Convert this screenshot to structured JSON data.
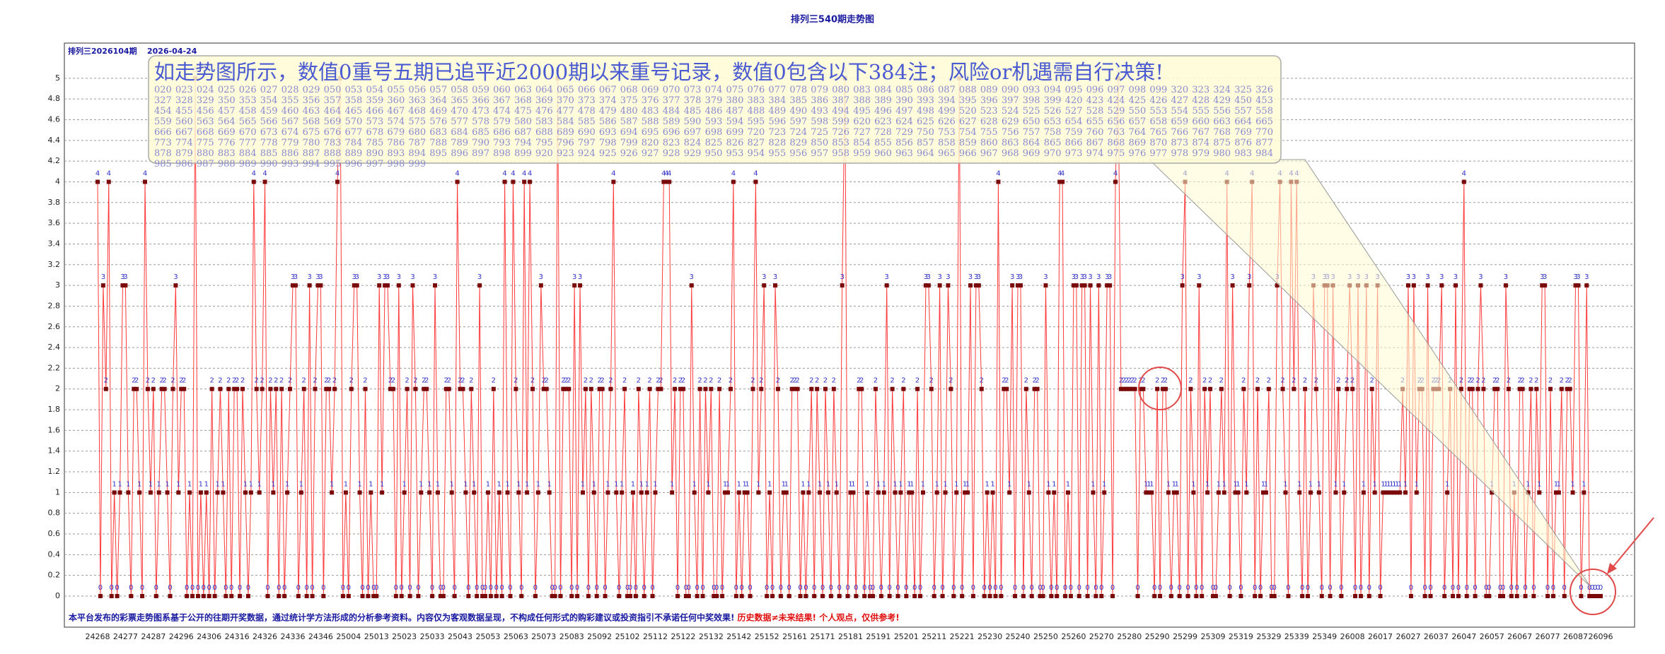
{
  "chart_data": {
    "type": "line",
    "title": "排列三540期走势图",
    "subtitle_period": "排列三2026104期",
    "subtitle_date": "2026-04-24",
    "annotation": "如走势图所示，数值0重号五期已追平近2000期以来重号记录，数值0包含以下384注；风险or机遇需自行决策!",
    "annotation_list": "020 023 024 025 026 027 028 029 050 053 054 055 056 057 058 059 060 063 064 065 066 067 068 069 070 073 074 075 076 077 078 079 080 083 084 085 086 087 088 089 090 093 094 095 096 097 098 099 320 323 324 325 326 327 328 329 350 353 354 355 356 357 358 359 360 363 364 365 366 367 368 369 370 373 374 375 376 377 378 379 380 383 384 385 386 387 388 389 390 393 394 395 396 397 398 399 420 423 424 425 426 427 428 429 450 453 454 455 456 457 458 459 460 463 464 465 466 467 468 469 470 473 474 475 476 477 478 479 480 483 484 485 486 487 488 489 490 493 494 495 496 497 498 499 520 523 524 525 526 527 528 529 550 553 554 555 556 557 558 559 560 563 564 565 566 567 568 569 570 573 574 575 576 577 578 579 580 583 584 585 586 587 588 589 590 593 594 595 596 597 598 599 620 623 624 625 626 627 628 629 650 653 654 655 656 657 658 659 660 663 664 665 666 667 668 669 670 673 674 675 676 677 678 679 680 683 684 685 686 687 688 689 690 693 694 695 696 697 698 699 720 723 724 725 726 727 728 729 750 753 754 755 756 757 758 759 760 763 764 765 766 767 768 769 770 773 774 775 776 777 778 779 780 783 784 785 786 787 788 789 790 793 794 795 796 797 798 799 820 823 824 825 826 827 828 829 850 853 854 855 856 857 858 859 860 863 864 865 866 867 868 869 870 873 874 875 876 877 878 879 880 883 884 885 886 887 888 889 890 893 894 895 896 897 898 899 920 923 924 925 926 927 928 929 950 953 954 955 956 957 958 959 960 963 964 965 966 967 968 969 970 973 974 975 976 977 978 979 980 983 984 985 986 987 988 989 990 993 994 995 996 997 998 999",
    "footer_note": "本平台发布的彩票走势图系基于公开的往期开奖数据，通过统计学方法形成的分析参考资料。内容仅为客观数据呈现，不构成任何形式的购彩建议或投资指引不承诺任何中奖效果!",
    "footer_warning": "历史数据≠未来结果! 个人观点，仅供参考!",
    "line_color": "#ff3b3b",
    "marker_color": "#7a0a0a",
    "label_color": "#3030c8",
    "grid": true,
    "ylim": [
      -0.3,
      5.34
    ],
    "yticks": [
      0,
      0.2,
      0.4,
      0.6,
      0.8,
      1,
      1.2,
      1.4,
      1.6,
      1.8,
      2,
      2.2,
      2.4,
      2.6,
      2.8,
      3,
      3.2,
      3.4,
      3.6,
      3.8,
      4,
      4.2,
      4.4,
      4.6,
      4.8,
      5
    ],
    "categories": [
      "24268",
      null,
      null,
      null,
      null,
      null,
      null,
      null,
      null,
      null,
      "24277",
      null,
      null,
      null,
      null,
      null,
      null,
      null,
      null,
      null,
      "24287",
      null,
      null,
      null,
      null,
      null,
      null,
      null,
      null,
      null,
      "24296",
      null,
      null,
      null,
      null,
      null,
      null,
      null,
      null,
      null,
      "24306",
      null,
      null,
      null,
      null,
      null,
      null,
      null,
      null,
      null,
      "24316",
      null,
      null,
      null,
      null,
      null,
      null,
      null,
      null,
      null,
      "24326",
      null,
      null,
      null,
      null,
      null,
      null,
      null,
      null,
      null,
      "24336",
      null,
      null,
      null,
      null,
      null,
      null,
      null,
      null,
      null,
      "24346",
      null,
      null,
      null,
      null,
      null,
      null,
      null,
      null,
      null,
      "25004",
      null,
      null,
      null,
      null,
      null,
      null,
      null,
      null,
      null,
      "25013",
      null,
      null,
      null,
      null,
      null,
      null,
      null,
      null,
      null,
      "25023",
      null,
      null,
      null,
      null,
      null,
      null,
      null,
      null,
      null,
      "25033",
      null,
      null,
      null,
      null,
      null,
      null,
      null,
      null,
      null,
      "25043",
      null,
      null,
      null,
      null,
      null,
      null,
      null,
      null,
      null,
      "25053",
      null,
      null,
      null,
      null,
      null,
      null,
      null,
      null,
      null,
      "25063",
      null,
      null,
      null,
      null,
      null,
      null,
      null,
      null,
      null,
      "25073",
      null,
      null,
      null,
      null,
      null,
      null,
      null,
      null,
      null,
      "25083",
      null,
      null,
      null,
      null,
      null,
      null,
      null,
      null,
      null,
      "25092",
      null,
      null,
      null,
      null,
      null,
      null,
      null,
      null,
      null,
      "25102",
      null,
      null,
      null,
      null,
      null,
      null,
      null,
      null,
      null,
      "25112",
      null,
      null,
      null,
      null,
      null,
      null,
      null,
      null,
      null,
      "25122",
      null,
      null,
      null,
      null,
      null,
      null,
      null,
      null,
      null,
      "25132",
      null,
      null,
      null,
      null,
      null,
      null,
      null,
      null,
      null,
      "25142",
      null,
      null,
      null,
      null,
      null,
      null,
      null,
      null,
      null,
      "25152",
      null,
      null,
      null,
      null,
      null,
      null,
      null,
      null,
      null,
      "25161",
      null,
      null,
      null,
      null,
      null,
      null,
      null,
      null,
      null,
      "25171",
      null,
      null,
      null,
      null,
      null,
      null,
      null,
      null,
      null,
      "25181",
      null,
      null,
      null,
      null,
      null,
      null,
      null,
      null,
      null,
      "25191",
      null,
      null,
      null,
      null,
      null,
      null,
      null,
      null,
      null,
      "25201",
      null,
      null,
      null,
      null,
      null,
      null,
      null,
      null,
      null,
      "25211",
      null,
      null,
      null,
      null,
      null,
      null,
      null,
      null,
      null,
      "25221",
      null,
      null,
      null,
      null,
      null,
      null,
      null,
      null,
      null,
      "25230",
      null,
      null,
      null,
      null,
      null,
      null,
      null,
      null,
      null,
      "25240",
      null,
      null,
      null,
      null,
      null,
      null,
      null,
      null,
      null,
      "25250",
      null,
      null,
      null,
      null,
      null,
      null,
      null,
      null,
      null,
      "25260",
      null,
      null,
      null,
      null,
      null,
      null,
      null,
      null,
      null,
      "25270",
      null,
      null,
      null,
      null,
      null,
      null,
      null,
      null,
      null,
      "25280",
      null,
      null,
      null,
      null,
      null,
      null,
      null,
      null,
      null,
      "25290",
      null,
      null,
      null,
      null,
      null,
      null,
      null,
      null,
      null,
      "25299",
      null,
      null,
      null,
      null,
      null,
      null,
      null,
      null,
      null,
      "25309",
      null,
      null,
      null,
      null,
      null,
      null,
      null,
      null,
      null,
      "25319",
      null,
      null,
      null,
      null,
      null,
      null,
      null,
      null,
      null,
      "25329",
      null,
      null,
      null,
      null,
      null,
      null,
      null,
      null,
      null,
      "25339",
      null,
      null,
      null,
      null,
      null,
      null,
      null,
      null,
      null,
      "25349",
      null,
      null,
      null,
      null,
      null,
      null,
      null,
      null,
      null,
      "26008",
      null,
      null,
      null,
      null,
      null,
      null,
      null,
      null,
      null,
      "26017",
      null,
      null,
      null,
      null,
      null,
      null,
      null,
      null,
      null,
      "26027",
      null,
      null,
      null,
      null,
      null,
      null,
      null,
      null,
      null,
      "26037",
      null,
      null,
      null,
      null,
      null,
      null,
      null,
      null,
      null,
      "26047",
      null,
      null,
      null,
      null,
      null,
      null,
      null,
      null,
      null,
      "26057",
      null,
      null,
      null,
      null,
      null,
      null,
      null,
      null,
      null,
      "26067",
      null,
      null,
      null,
      null,
      null,
      null,
      null,
      null,
      null,
      "26077",
      null,
      null,
      null,
      null,
      null,
      null,
      null,
      null,
      null,
      "26087",
      null,
      null,
      null,
      null,
      null,
      null,
      null,
      null,
      "26096"
    ],
    "values": [
      4,
      0,
      3,
      2,
      4,
      0,
      1,
      0,
      1,
      3,
      3,
      1,
      0,
      2,
      2,
      1,
      0,
      4,
      2,
      1,
      2,
      0,
      1,
      2,
      2,
      1,
      0,
      2,
      3,
      1,
      2,
      2,
      0,
      1,
      0,
      5,
      0,
      1,
      0,
      1,
      0,
      2,
      0,
      1,
      2,
      1,
      0,
      2,
      0,
      2,
      2,
      0,
      2,
      1,
      0,
      1,
      4,
      2,
      1,
      2,
      4,
      0,
      2,
      1,
      2,
      0,
      2,
      0,
      1,
      2,
      3,
      3,
      0,
      1,
      2,
      0,
      3,
      0,
      2,
      3,
      3,
      0,
      2,
      2,
      1,
      2,
      4,
      5,
      0,
      1,
      0,
      2,
      3,
      3,
      1,
      0,
      2,
      0,
      1,
      0,
      0,
      3,
      1,
      3,
      3,
      2,
      2,
      0,
      3,
      0,
      1,
      2,
      0,
      3,
      2,
      0,
      1,
      2,
      2,
      1,
      0,
      3,
      1,
      0,
      0,
      2,
      2,
      1,
      0,
      4,
      2,
      2,
      1,
      0,
      2,
      1,
      0,
      3,
      0,
      0,
      1,
      0,
      2,
      0,
      1,
      0,
      4,
      1,
      0,
      4,
      2,
      1,
      0,
      4,
      1,
      4,
      2,
      0,
      1,
      3,
      2,
      2,
      1,
      0,
      0,
      5,
      0,
      2,
      2,
      2,
      0,
      3,
      0,
      3,
      1,
      2,
      0,
      2,
      1,
      0,
      2,
      2,
      0,
      1,
      2,
      4,
      1,
      0,
      1,
      2,
      0,
      0,
      1,
      0,
      2,
      1,
      0,
      1,
      2,
      0,
      1,
      2,
      2,
      4,
      4,
      4,
      1,
      2,
      0,
      2,
      2,
      0,
      0,
      3,
      1,
      0,
      2,
      0,
      2,
      1,
      2,
      0,
      0,
      2,
      0,
      1,
      1,
      2,
      4,
      0,
      1,
      0,
      1,
      1,
      0,
      2,
      4,
      1,
      2,
      3,
      0,
      1,
      0,
      3,
      2,
      0,
      1,
      1,
      0,
      2,
      2,
      2,
      0,
      1,
      0,
      1,
      2,
      0,
      2,
      1,
      0,
      2,
      1,
      0,
      2,
      1,
      0,
      3,
      5,
      0,
      1,
      1,
      0,
      2,
      2,
      0,
      1,
      0,
      0,
      2,
      1,
      0,
      1,
      3,
      0,
      2,
      1,
      0,
      1,
      2,
      0,
      1,
      1,
      0,
      2,
      0,
      1,
      3,
      3,
      2,
      0,
      1,
      3,
      0,
      1,
      3,
      2,
      0,
      1,
      5,
      0,
      1,
      1,
      3,
      0,
      3,
      3,
      2,
      0,
      1,
      0,
      1,
      0,
      4,
      0,
      2,
      2,
      1,
      3,
      0,
      3,
      3,
      0,
      2,
      1,
      0,
      2,
      2,
      0,
      0,
      3,
      1,
      0,
      1,
      0,
      4,
      4,
      0,
      1,
      0,
      3,
      3,
      0,
      3,
      3,
      0,
      3,
      1,
      0,
      3,
      0,
      1,
      3,
      3,
      0,
      4,
      5,
      2,
      2,
      2,
      2,
      2,
      2,
      0,
      2,
      2,
      1,
      1,
      1,
      0,
      2,
      0,
      2,
      2,
      1,
      0,
      1,
      1,
      0,
      3,
      4,
      0,
      2,
      1,
      0,
      3,
      0,
      2,
      1,
      2,
      0,
      0,
      1,
      2,
      1,
      4,
      0,
      3,
      1,
      1,
      0,
      2,
      1,
      3,
      4,
      0,
      2,
      0,
      1,
      1,
      2,
      0,
      0,
      3,
      4,
      2,
      1,
      0,
      4,
      2,
      4,
      1,
      0,
      2,
      0,
      1,
      3,
      2,
      1,
      0,
      3,
      3,
      0,
      3,
      1,
      2,
      0,
      1,
      2,
      3,
      2,
      0,
      3,
      0,
      1,
      3,
      0,
      2,
      1,
      3,
      0,
      1,
      1,
      1,
      1,
      1,
      1,
      1,
      2,
      1,
      3,
      0,
      3,
      1,
      2,
      2,
      0,
      3,
      0,
      2,
      2,
      2,
      3,
      0,
      1,
      2,
      0,
      3,
      0,
      2,
      4,
      0,
      2,
      2,
      0,
      2,
      3,
      2,
      0,
      0,
      1,
      2,
      2,
      0,
      0,
      3,
      2,
      0,
      1,
      0,
      2,
      2,
      0,
      1,
      2,
      0,
      2,
      1,
      3,
      3,
      0,
      2,
      0,
      1,
      1,
      2,
      0,
      2,
      2,
      1,
      3,
      3,
      0,
      1,
      3,
      0,
      0,
      0,
      0,
      0
    ]
  }
}
